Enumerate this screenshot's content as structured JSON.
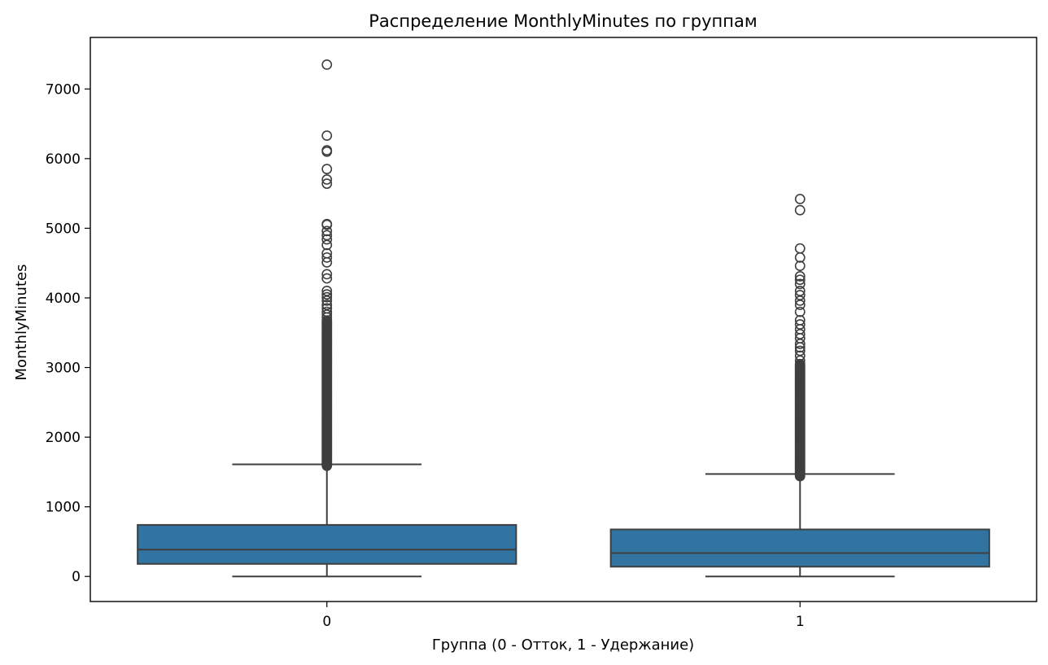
{
  "chart_data": {
    "type": "box",
    "title": "Распределение MonthlyMinutes по группам",
    "xlabel": "Группа (0 - Отток, 1 - Удержание)",
    "ylabel": "MonthlyMinutes",
    "ylim": [
      -360,
      7740
    ],
    "yticks": [
      0,
      1000,
      2000,
      3000,
      4000,
      5000,
      6000,
      7000
    ],
    "box_color": "#3274a1",
    "line_color": "#3f3f3f",
    "categories": [
      "0",
      "1"
    ],
    "series": [
      {
        "category": "0",
        "whisker_low": 0,
        "q1": 180,
        "median": 385,
        "q3": 740,
        "whisker_high": 1610,
        "outliers_dense_range": [
          1590,
          3680
        ],
        "outliers": [
          3720,
          3760,
          3800,
          3850,
          3900,
          3960,
          4010,
          4050,
          4100,
          4280,
          4340,
          4510,
          4580,
          4640,
          4760,
          4840,
          4900,
          4960,
          5050,
          5060,
          5640,
          5700,
          5850,
          6100,
          6120,
          6330,
          7350
        ]
      },
      {
        "category": "1",
        "whisker_low": 0,
        "q1": 140,
        "median": 335,
        "q3": 675,
        "whisker_high": 1470,
        "outliers_dense_range": [
          1440,
          3050
        ],
        "outliers": [
          3100,
          3170,
          3240,
          3290,
          3340,
          3420,
          3480,
          3550,
          3620,
          3680,
          3800,
          3900,
          3960,
          4040,
          4100,
          4200,
          4260,
          4310,
          4460,
          4580,
          4710,
          5260,
          5420
        ]
      }
    ]
  }
}
